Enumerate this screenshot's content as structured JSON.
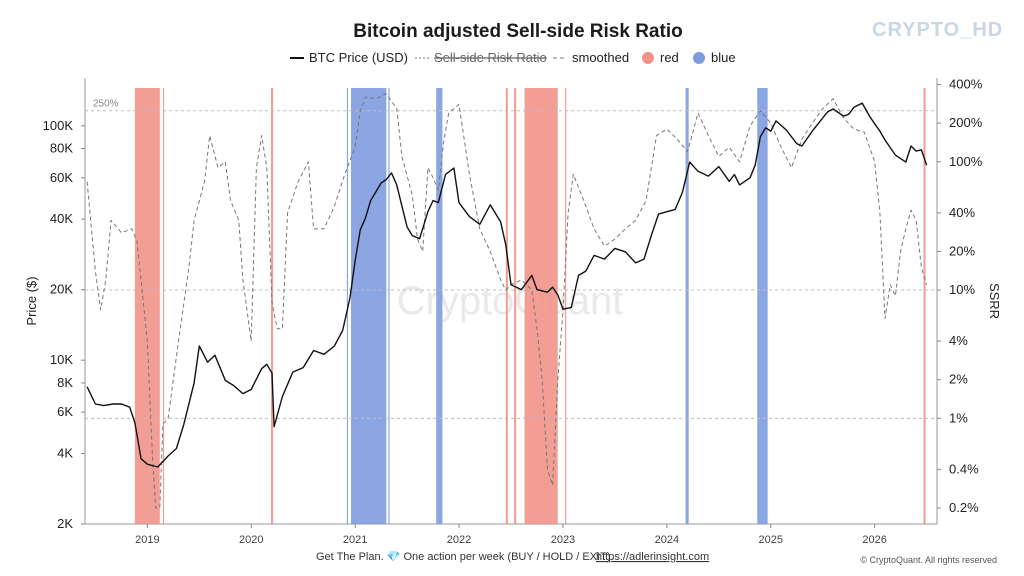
{
  "brand": "CRYPTO_HD",
  "watermark": "CryptoQuant",
  "footer": {
    "text": "Get The Plan. 💎 One action per week (BUY / HOLD / EXIT).",
    "link": "https://adlerinsight.com",
    "copyright": "© CryptoQuant. All rights reserved"
  },
  "colors": {
    "price": "#111111",
    "ssrr": "#777777",
    "red": "#f1948a",
    "blue": "#7f9be0",
    "grid": "#bdbdbd"
  },
  "chart_data": {
    "type": "line",
    "title": "Bitcoin adjusted Sell-side Risk Ratio",
    "ylabel_left": "Price ($)",
    "ylabel_right": "SSRR",
    "legend": [
      "BTC Price (USD)",
      "Sell-side Risk Ratio",
      "smoothed",
      "red",
      "blue"
    ],
    "legend_position": "top-center",
    "left_axis": {
      "scale": "log",
      "range": [
        2000,
        160000
      ],
      "ticks": [
        2000,
        4000,
        6000,
        8000,
        10000,
        20000,
        40000,
        60000,
        80000,
        100000
      ],
      "tick_labels": [
        "2K",
        "4K",
        "6K",
        "8K",
        "10K",
        "20K",
        "40K",
        "60K",
        "80K",
        "100K"
      ]
    },
    "right_axis": {
      "scale": "log",
      "range": [
        0.0015,
        4.5
      ],
      "ticks": [
        0.002,
        0.004,
        0.01,
        0.02,
        0.04,
        0.1,
        0.2,
        0.4,
        1,
        2,
        4
      ],
      "tick_labels": [
        "0.2%",
        "0.4%",
        "1%",
        "2%",
        "4%",
        "10%",
        "20%",
        "40%",
        "100%",
        "200%",
        "400%"
      ]
    },
    "x_axis": {
      "range": [
        2018.4,
        2026.6
      ],
      "ticks": [
        2019,
        2020,
        2021,
        2022,
        2023,
        2024,
        2025,
        2026
      ],
      "tick_labels": [
        "2019",
        "2020",
        "2021",
        "2022",
        "2023",
        "2024",
        "2025",
        "2026"
      ]
    },
    "reference_lines": [
      {
        "value": 2.5,
        "label": "250%"
      },
      {
        "value": 0.1,
        "label": ""
      },
      {
        "value": 0.01,
        "label": ""
      }
    ],
    "series": [
      {
        "name": "BTC Price (USD)",
        "axis": "left",
        "x": [
          2018.42,
          2018.5,
          2018.58,
          2018.67,
          2018.75,
          2018.83,
          2018.88,
          2018.94,
          2019.0,
          2019.1,
          2019.2,
          2019.28,
          2019.35,
          2019.45,
          2019.5,
          2019.58,
          2019.65,
          2019.75,
          2019.83,
          2019.92,
          2020.0,
          2020.1,
          2020.15,
          2020.2,
          2020.22,
          2020.3,
          2020.4,
          2020.5,
          2020.6,
          2020.7,
          2020.8,
          2020.88,
          2020.95,
          2021.0,
          2021.05,
          2021.1,
          2021.15,
          2021.25,
          2021.3,
          2021.35,
          2021.4,
          2021.5,
          2021.55,
          2021.62,
          2021.7,
          2021.75,
          2021.8,
          2021.87,
          2021.95,
          2022.0,
          2022.1,
          2022.2,
          2022.3,
          2022.4,
          2022.45,
          2022.5,
          2022.6,
          2022.7,
          2022.75,
          2022.85,
          2022.9,
          2022.95,
          2023.0,
          2023.08,
          2023.15,
          2023.22,
          2023.3,
          2023.4,
          2023.5,
          2023.6,
          2023.7,
          2023.78,
          2023.85,
          2023.92,
          2024.0,
          2024.08,
          2024.15,
          2024.22,
          2024.3,
          2024.4,
          2024.5,
          2024.6,
          2024.65,
          2024.7,
          2024.8,
          2024.85,
          2024.9,
          2024.95,
          2025.0,
          2025.05,
          2025.15,
          2025.25,
          2025.3,
          2025.4,
          2025.5,
          2025.55,
          2025.6,
          2025.7,
          2025.75,
          2025.8,
          2025.88,
          2025.95,
          2026.0,
          2026.05,
          2026.1,
          2026.2,
          2026.3,
          2026.35,
          2026.4,
          2026.45,
          2026.5
        ],
        "values": [
          7700,
          6500,
          6400,
          6500,
          6500,
          6300,
          5400,
          3800,
          3600,
          3500,
          3900,
          4200,
          5300,
          8000,
          11500,
          9800,
          10500,
          8200,
          7800,
          7200,
          7500,
          9200,
          9600,
          8800,
          5200,
          7000,
          8900,
          9300,
          11000,
          10600,
          11500,
          13400,
          18500,
          26500,
          36000,
          40500,
          48000,
          57000,
          59000,
          63000,
          56000,
          37000,
          34000,
          33000,
          43000,
          48000,
          47000,
          62000,
          66000,
          47000,
          41000,
          38000,
          46000,
          39000,
          31000,
          21000,
          20000,
          23000,
          20000,
          19500,
          20500,
          19000,
          16500,
          16800,
          23000,
          24000,
          28000,
          27000,
          30000,
          29000,
          26000,
          27000,
          34000,
          42000,
          43000,
          44000,
          52000,
          70000,
          64000,
          61000,
          67000,
          58000,
          62000,
          56000,
          60000,
          68000,
          90000,
          98000,
          95000,
          105000,
          96000,
          84000,
          82000,
          95000,
          108000,
          115000,
          118000,
          110000,
          112000,
          120000,
          125000,
          110000,
          102000,
          95000,
          87000,
          75000,
          70000,
          82000,
          78000,
          79000,
          68000
        ]
      },
      {
        "name": "smoothed",
        "axis": "right",
        "x": [
          2018.42,
          2018.5,
          2018.55,
          2018.6,
          2018.65,
          2018.75,
          2018.85,
          2018.9,
          2019.0,
          2019.05,
          2019.08,
          2019.12,
          2019.15,
          2019.2,
          2019.3,
          2019.4,
          2019.45,
          2019.55,
          2019.6,
          2019.68,
          2019.75,
          2019.8,
          2019.88,
          2019.92,
          2020.0,
          2020.05,
          2020.1,
          2020.15,
          2020.2,
          2020.25,
          2020.3,
          2020.35,
          2020.45,
          2020.55,
          2020.6,
          2020.7,
          2020.8,
          2020.9,
          2021.0,
          2021.05,
          2021.1,
          2021.2,
          2021.3,
          2021.4,
          2021.45,
          2021.55,
          2021.6,
          2021.65,
          2021.7,
          2021.75,
          2021.8,
          2021.85,
          2021.9,
          2022.0,
          2022.1,
          2022.2,
          2022.3,
          2022.4,
          2022.45,
          2022.5,
          2022.6,
          2022.7,
          2022.75,
          2022.8,
          2022.85,
          2022.9,
          2022.95,
          2023.0,
          2023.05,
          2023.1,
          2023.2,
          2023.3,
          2023.4,
          2023.5,
          2023.6,
          2023.7,
          2023.8,
          2023.9,
          2024.0,
          2024.1,
          2024.2,
          2024.3,
          2024.4,
          2024.5,
          2024.6,
          2024.7,
          2024.8,
          2024.9,
          2025.0,
          2025.1,
          2025.2,
          2025.3,
          2025.4,
          2025.5,
          2025.6,
          2025.7,
          2025.8,
          2025.9,
          2026.0,
          2026.05,
          2026.1,
          2026.15,
          2026.2,
          2026.25,
          2026.3,
          2026.35,
          2026.4,
          2026.45,
          2026.5
        ],
        "values": [
          0.7,
          0.14,
          0.07,
          0.12,
          0.35,
          0.28,
          0.3,
          0.24,
          0.04,
          0.005,
          0.002,
          0.002,
          0.009,
          0.01,
          0.04,
          0.15,
          0.35,
          0.7,
          1.6,
          0.9,
          1.0,
          0.5,
          0.35,
          0.12,
          0.04,
          0.9,
          1.6,
          0.9,
          0.08,
          0.05,
          0.05,
          0.4,
          0.7,
          1.0,
          0.3,
          0.3,
          0.45,
          0.8,
          1.3,
          2.5,
          3.2,
          3.1,
          3.4,
          2.6,
          1.1,
          0.55,
          0.25,
          0.2,
          0.9,
          0.75,
          0.6,
          1.4,
          2.4,
          2.8,
          0.8,
          0.3,
          0.2,
          0.12,
          0.1,
          0.11,
          0.12,
          0.1,
          0.05,
          0.02,
          0.004,
          0.003,
          0.02,
          0.07,
          0.4,
          0.8,
          0.5,
          0.3,
          0.22,
          0.25,
          0.3,
          0.35,
          0.5,
          1.6,
          1.8,
          1.5,
          1.2,
          2.4,
          1.6,
          1.1,
          1.3,
          1.0,
          1.9,
          2.5,
          2.0,
          1.3,
          0.9,
          1.5,
          2.0,
          2.6,
          3.1,
          2.2,
          1.8,
          1.7,
          1.0,
          0.4,
          0.06,
          0.11,
          0.09,
          0.2,
          0.3,
          0.42,
          0.35,
          0.15,
          0.11
        ]
      }
    ],
    "bands": [
      {
        "color": "red",
        "from": 2018.88,
        "to": 2019.12
      },
      {
        "color": "red",
        "from": 2019.15,
        "to": 2019.16
      },
      {
        "color": "red",
        "from": 2020.19,
        "to": 2020.21
      },
      {
        "color": "blue",
        "from": 2020.92,
        "to": 2020.93
      },
      {
        "color": "blue",
        "from": 2020.96,
        "to": 2021.3
      },
      {
        "color": "blue",
        "from": 2021.32,
        "to": 2021.33
      },
      {
        "color": "blue",
        "from": 2021.78,
        "to": 2021.84
      },
      {
        "color": "red",
        "from": 2022.45,
        "to": 2022.47
      },
      {
        "color": "red",
        "from": 2022.53,
        "to": 2022.55
      },
      {
        "color": "red",
        "from": 2022.63,
        "to": 2022.95
      },
      {
        "color": "red",
        "from": 2023.02,
        "to": 2023.03
      },
      {
        "color": "blue",
        "from": 2024.18,
        "to": 2024.21
      },
      {
        "color": "blue",
        "from": 2024.87,
        "to": 2024.97
      },
      {
        "color": "red",
        "from": 2026.47,
        "to": 2026.49
      }
    ]
  }
}
